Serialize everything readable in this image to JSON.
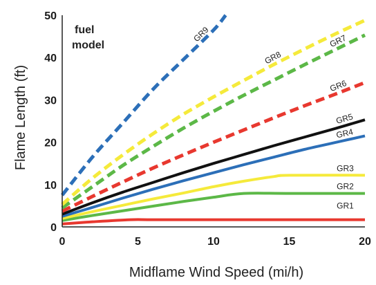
{
  "chart_data": {
    "type": "line",
    "title": "",
    "xlabel": "Midflame Wind Speed (mi/h)",
    "ylabel": "Flame Length (ft)",
    "xlim": [
      0,
      20
    ],
    "ylim": [
      0,
      50
    ],
    "xticks": [
      0,
      5,
      10,
      15,
      20
    ],
    "yticks": [
      0,
      10,
      20,
      30,
      40,
      50
    ],
    "grid": false,
    "legend_title": "fuel model",
    "series": [
      {
        "name": "GR1",
        "color": "#e8382f",
        "dash": false,
        "points": [
          [
            0,
            0.7
          ],
          [
            2,
            1.2
          ],
          [
            4.5,
            1.7
          ],
          [
            6,
            1.7
          ],
          [
            10,
            1.7
          ],
          [
            15,
            1.7
          ],
          [
            20,
            1.7
          ]
        ]
      },
      {
        "name": "GR2",
        "color": "#5cb847",
        "dash": false,
        "points": [
          [
            0,
            1.5
          ],
          [
            2,
            2.7
          ],
          [
            4,
            3.8
          ],
          [
            6,
            4.9
          ],
          [
            8,
            6.0
          ],
          [
            10,
            7.0
          ],
          [
            12,
            7.9
          ],
          [
            15,
            7.9
          ],
          [
            20,
            7.9
          ]
        ]
      },
      {
        "name": "GR3",
        "color": "#f5ea3b",
        "dash": false,
        "points": [
          [
            0,
            2.0
          ],
          [
            2,
            3.6
          ],
          [
            4,
            5.1
          ],
          [
            6,
            6.6
          ],
          [
            8,
            8.0
          ],
          [
            10,
            9.5
          ],
          [
            12,
            10.8
          ],
          [
            14,
            11.9
          ],
          [
            15,
            12.2
          ],
          [
            20,
            12.2
          ]
        ]
      },
      {
        "name": "GR4",
        "color": "#2c6fb8",
        "dash": false,
        "points": [
          [
            0,
            2.5
          ],
          [
            2,
            4.6
          ],
          [
            4,
            6.8
          ],
          [
            6,
            8.9
          ],
          [
            8,
            10.9
          ],
          [
            10,
            12.8
          ],
          [
            12,
            14.7
          ],
          [
            14,
            16.5
          ],
          [
            16,
            18.3
          ],
          [
            18,
            19.9
          ],
          [
            20,
            21.5
          ]
        ]
      },
      {
        "name": "GR5",
        "color": "#111111",
        "dash": false,
        "points": [
          [
            0,
            3.0
          ],
          [
            2,
            5.7
          ],
          [
            4,
            8.2
          ],
          [
            6,
            10.5
          ],
          [
            8,
            12.8
          ],
          [
            10,
            15.0
          ],
          [
            12,
            17.1
          ],
          [
            14,
            19.2
          ],
          [
            16,
            21.2
          ],
          [
            18,
            23.2
          ],
          [
            20,
            25.3
          ]
        ]
      },
      {
        "name": "GR6",
        "color": "#e8382f",
        "dash": true,
        "points": [
          [
            0,
            3.7
          ],
          [
            2,
            7.2
          ],
          [
            4,
            10.6
          ],
          [
            6,
            13.9
          ],
          [
            8,
            17.0
          ],
          [
            10,
            20.0
          ],
          [
            12,
            22.9
          ],
          [
            14,
            25.8
          ],
          [
            16,
            28.6
          ],
          [
            18,
            31.3
          ],
          [
            20,
            34.1
          ]
        ]
      },
      {
        "name": "GR7",
        "color": "#5cb847",
        "dash": true,
        "points": [
          [
            0,
            4.5
          ],
          [
            2,
            9.5
          ],
          [
            4,
            14.5
          ],
          [
            6,
            19.0
          ],
          [
            8,
            23.3
          ],
          [
            10,
            27.3
          ],
          [
            12,
            31.1
          ],
          [
            14,
            34.7
          ],
          [
            16,
            38.3
          ],
          [
            18,
            41.8
          ],
          [
            20,
            45.3
          ]
        ]
      },
      {
        "name": "GR8",
        "color": "#f5ea3b",
        "dash": true,
        "points": [
          [
            0,
            5.3
          ],
          [
            2,
            11.5
          ],
          [
            4,
            17.0
          ],
          [
            6,
            22.0
          ],
          [
            8,
            26.6
          ],
          [
            10,
            30.7
          ],
          [
            12,
            34.6
          ],
          [
            14,
            38.4
          ],
          [
            16,
            42.0
          ],
          [
            18,
            45.5
          ],
          [
            20,
            48.8
          ]
        ]
      },
      {
        "name": "GR9",
        "color": "#2c6fb8",
        "dash": true,
        "points": [
          [
            0,
            7.5
          ],
          [
            2,
            16.5
          ],
          [
            4,
            24.5
          ],
          [
            6,
            32.5
          ],
          [
            8,
            39.5
          ],
          [
            10,
            46.5
          ],
          [
            10.8,
            50
          ]
        ]
      }
    ]
  }
}
